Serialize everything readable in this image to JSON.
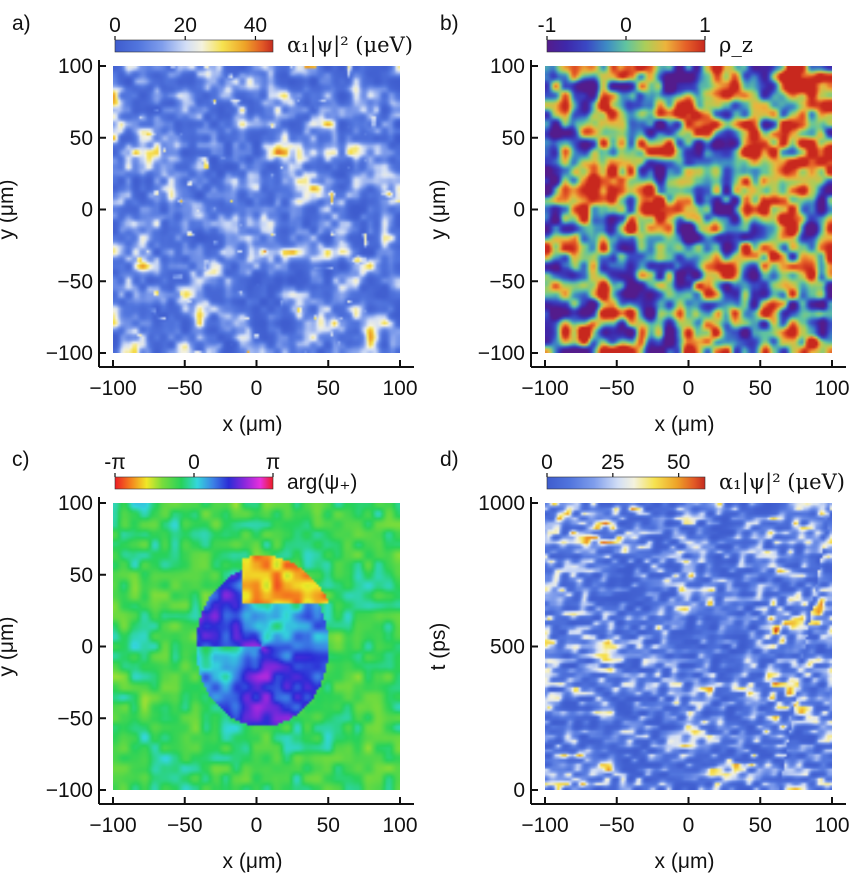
{
  "chart_data": [
    {
      "type": "heatmap",
      "panel": "a)",
      "colormap": "density",
      "field_style": "blobs",
      "xlabel": "x (μm)",
      "ylabel": "y (μm)",
      "xlim": [
        -100,
        100
      ],
      "ylim": [
        -100,
        100
      ],
      "xticks": [
        -100,
        -50,
        0,
        50,
        100
      ],
      "yticks": [
        -100,
        -50,
        0,
        50,
        100
      ],
      "xtick_labels": [
        "−100",
        "−50",
        "0",
        "50",
        "100"
      ],
      "ytick_labels": [
        "−100",
        "−50",
        "0",
        "50",
        "100"
      ],
      "colorbar": {
        "ticks": [
          0,
          20,
          40
        ],
        "tick_labels": [
          "0",
          "20",
          "40"
        ],
        "range": [
          0,
          45
        ],
        "title": "α₁|ψ|² (μeV)"
      },
      "show_xlabel": true
    },
    {
      "type": "heatmap",
      "panel": "b)",
      "colormap": "spin",
      "field_style": "turbulent",
      "xlabel": "x (μm)",
      "ylabel": "y (μm)",
      "xlim": [
        -100,
        100
      ],
      "ylim": [
        -100,
        100
      ],
      "xticks": [
        -100,
        -50,
        0,
        50,
        100
      ],
      "yticks": [
        -100,
        -50,
        0,
        50,
        100
      ],
      "xtick_labels": [
        "−100",
        "−50",
        "0",
        "50",
        "100"
      ],
      "ytick_labels": [
        "−100",
        "−50",
        "0",
        "50",
        "100"
      ],
      "colorbar": {
        "ticks": [
          -1,
          0,
          1
        ],
        "tick_labels": [
          "-1",
          "0",
          "1"
        ],
        "range": [
          -1,
          1
        ],
        "title": "ρ_z"
      },
      "show_xlabel": true
    },
    {
      "type": "heatmap",
      "panel": "c)",
      "colormap": "phase",
      "field_style": "phase",
      "xlabel": "x (μm)",
      "ylabel": "y (μm)",
      "xlim": [
        -100,
        100
      ],
      "ylim": [
        -100,
        100
      ],
      "xticks": [
        -100,
        -50,
        0,
        50,
        100
      ],
      "yticks": [
        -100,
        -50,
        0,
        50,
        100
      ],
      "xtick_labels": [
        "−100",
        "−50",
        "0",
        "50",
        "100"
      ],
      "ytick_labels": [
        "−100",
        "−50",
        "0",
        "50",
        "100"
      ],
      "colorbar": {
        "ticks": [
          -3.14159,
          0,
          3.14159
        ],
        "tick_labels": [
          "-π",
          "0",
          "π"
        ],
        "range": [
          -3.14159,
          3.14159
        ],
        "title": "arg(ψ₊)"
      },
      "show_xlabel": true
    },
    {
      "type": "heatmap",
      "panel": "d)",
      "colormap": "density",
      "field_style": "streaks",
      "xlabel": "x (μm)",
      "ylabel": "t (ps)",
      "xlim": [
        -100,
        100
      ],
      "ylim": [
        0,
        1000
      ],
      "xticks": [
        -100,
        -50,
        0,
        50,
        100
      ],
      "yticks": [
        0,
        500,
        1000
      ],
      "xtick_labels": [
        "−100",
        "−50",
        "0",
        "50",
        "100"
      ],
      "ytick_labels": [
        "0",
        "500",
        "1000"
      ],
      "colorbar": {
        "ticks": [
          0,
          25,
          50
        ],
        "tick_labels": [
          "0",
          "25",
          "50"
        ],
        "range": [
          0,
          60
        ],
        "title": "α₁|ψ|² (μeV)"
      },
      "show_xlabel": true
    }
  ]
}
